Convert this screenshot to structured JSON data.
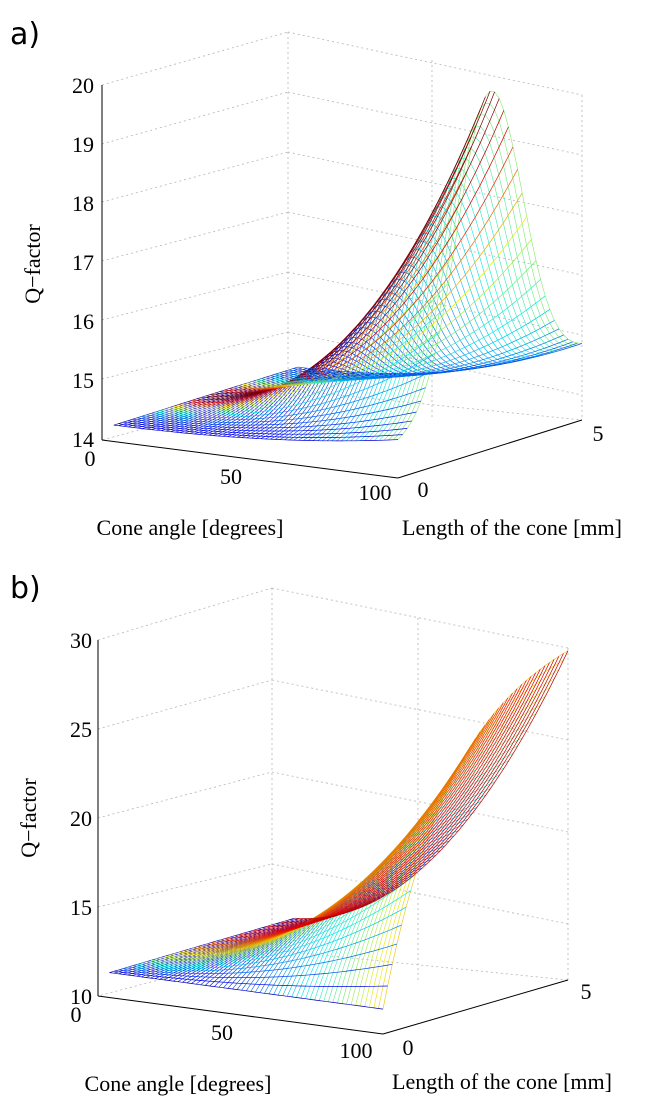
{
  "chart_data": [
    {
      "panel_label": "a)",
      "type": "surface",
      "title": "",
      "xlabel": "Cone angle [degrees]",
      "ylabel": "Length of the cone [mm]",
      "zlabel": "Q−factor",
      "xlim": [
        0,
        100
      ],
      "ylim": [
        0,
        5
      ],
      "zlim": [
        14,
        20.5
      ],
      "x_ticks": [
        "0",
        "50",
        "100"
      ],
      "y_ticks": [
        "0",
        "5"
      ],
      "z_ticks": [
        "14",
        "15",
        "16",
        "17",
        "18",
        "19",
        "20"
      ],
      "grid": true,
      "colormap": "jet",
      "surface_peak": {
        "x": 92,
        "y": 2.5,
        "z": 20.2
      },
      "edge_values": {
        "at_length_0": [
          {
            "x": 5,
            "z": 14.3
          },
          {
            "x": 90,
            "z": 14.3
          }
        ],
        "at_angle_100": [
          {
            "y": 0,
            "z": 14.6
          },
          {
            "y": 2.5,
            "z": 20.2
          },
          {
            "y": 5,
            "z": 15.0
          }
        ]
      }
    },
    {
      "panel_label": "b)",
      "type": "surface",
      "title": "",
      "xlabel": "Cone angle [degrees]",
      "ylabel": "Length of the cone [mm]",
      "zlabel": "Q−factor",
      "xlim": [
        0,
        100
      ],
      "ylim": [
        0,
        5
      ],
      "zlim": [
        10,
        30
      ],
      "x_ticks": [
        "0",
        "50",
        "100"
      ],
      "y_ticks": [
        "0",
        "5"
      ],
      "z_ticks": [
        "10",
        "15",
        "20",
        "25",
        "30"
      ],
      "grid": true,
      "colormap": "jet",
      "surface_peak": {
        "x": 100,
        "y": 5,
        "z": 28.5
      },
      "edge_values": {
        "at_length_0": [
          {
            "x": 5,
            "z": 11.4
          },
          {
            "x": 90,
            "z": 11.4
          }
        ],
        "at_angle_100": [
          {
            "y": 0,
            "z": 11.4
          },
          {
            "y": 5,
            "z": 28.5
          }
        ]
      }
    }
  ]
}
